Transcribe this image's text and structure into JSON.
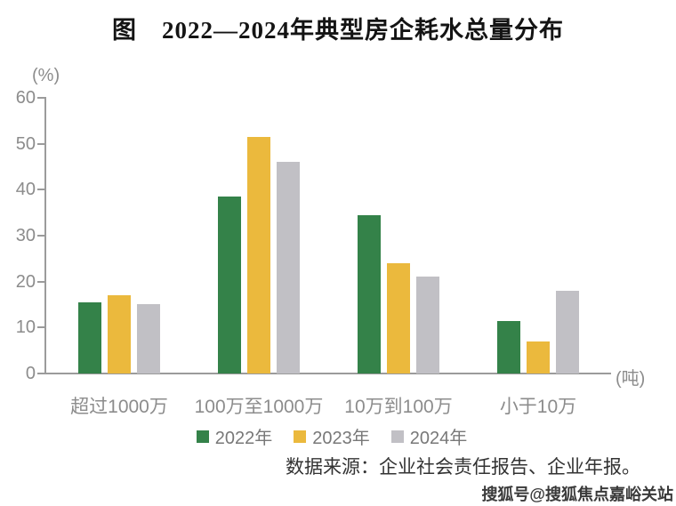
{
  "page": {
    "source": "数据来源：企业社会责任报告、企业年报。",
    "watermark": "搜狐号@搜狐焦点嘉峪关站"
  },
  "chart_data": {
    "type": "bar",
    "title": "图　2022—2024年典型房企耗水总量分布",
    "y_unit": "(%)",
    "x_unit": "(吨)",
    "categories": [
      "超过1000万",
      "100万至1000万",
      "10万到100万",
      "小于10万"
    ],
    "series": [
      {
        "name": "2022年",
        "color": "#348249",
        "values": [
          15.5,
          38.5,
          34.5,
          11.5
        ]
      },
      {
        "name": "2023年",
        "color": "#ebb93d",
        "values": [
          17,
          51.5,
          24,
          7
        ]
      },
      {
        "name": "2024年",
        "color": "#c1c0c5",
        "values": [
          15,
          46,
          21,
          18
        ]
      }
    ],
    "ylim": [
      0,
      60
    ],
    "yticks": [
      0,
      10,
      20,
      30,
      40,
      50,
      60
    ],
    "grid": false,
    "legend_position": "bottom"
  }
}
